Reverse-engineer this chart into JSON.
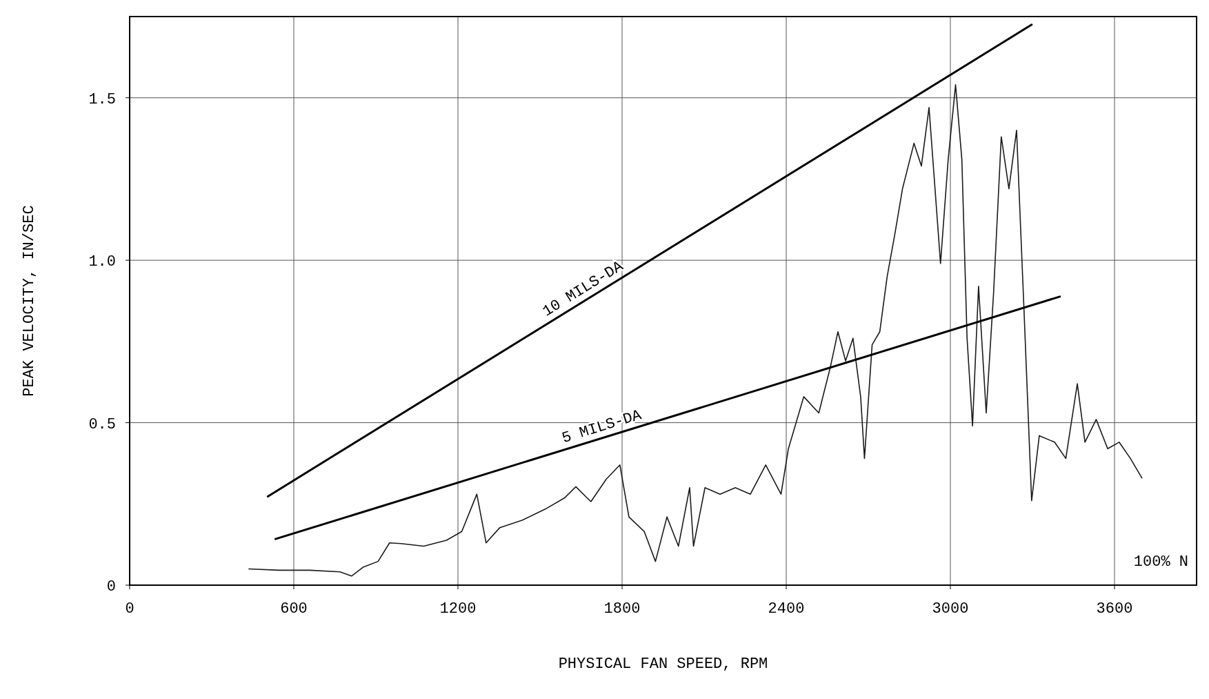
{
  "chart_data": {
    "type": "line",
    "xlabel": "PHYSICAL FAN SPEED, RPM",
    "ylabel": "PEAK VELOCITY, IN/SEC",
    "xlim": [
      0,
      3900
    ],
    "ylim": [
      0,
      1.75
    ],
    "xticks": [
      0,
      600,
      1200,
      1800,
      2400,
      3000,
      3600
    ],
    "yticks": [
      0,
      0.5,
      {
        "value": 1,
        "label": "1.0"
      },
      1.5
    ],
    "grid": true,
    "series": [
      {
        "color": "#1a1a1a",
        "x": [
          436,
          547,
          658,
          769,
          811,
          853,
          908,
          950,
          992,
          1075,
          1158,
          1214,
          1269,
          1303,
          1353,
          1436,
          1519,
          1589,
          1631,
          1686,
          1742,
          1792,
          1825,
          1881,
          1922,
          1964,
          2006,
          2047,
          2061,
          2103,
          2158,
          2214,
          2269,
          2325,
          2381,
          2408,
          2464,
          2519,
          2561,
          2589,
          2617,
          2644,
          2672,
          2686,
          2714,
          2742,
          2769,
          2797,
          2825,
          2867,
          2894,
          2922,
          2950,
          2964,
          2992,
          3019,
          3042,
          3061,
          3081,
          3103,
          3131,
          3158,
          3186,
          3214,
          3242,
          3269,
          3297,
          3325,
          3381,
          3422,
          3464,
          3492,
          3533,
          3575,
          3617,
          3658,
          3700
        ],
        "values": [
          0.05,
          0.046,
          0.046,
          0.041,
          0.028,
          0.055,
          0.073,
          0.13,
          0.128,
          0.12,
          0.138,
          0.165,
          0.28,
          0.13,
          0.177,
          0.2,
          0.234,
          0.268,
          0.303,
          0.257,
          0.326,
          0.37,
          0.21,
          0.165,
          0.073,
          0.21,
          0.12,
          0.3,
          0.12,
          0.3,
          0.28,
          0.3,
          0.28,
          0.37,
          0.28,
          0.42,
          0.58,
          0.53,
          0.67,
          0.78,
          0.69,
          0.76,
          0.58,
          0.39,
          0.74,
          0.78,
          0.95,
          1.08,
          1.22,
          1.36,
          1.29,
          1.47,
          1.15,
          0.99,
          1.31,
          1.54,
          1.31,
          0.76,
          0.49,
          0.92,
          0.53,
          0.9,
          1.38,
          1.22,
          1.4,
          0.85,
          0.26,
          0.46,
          0.44,
          0.39,
          0.62,
          0.44,
          0.51,
          0.42,
          0.44,
          0.39,
          0.33
        ]
      },
      {
        "name": "10 MILS-DA",
        "color": "#000000",
        "x": [
          505,
          3297
        ],
        "values": [
          0.273,
          1.725
        ]
      },
      {
        "name": "5 MILS-DA",
        "color": "#000000",
        "x": [
          533,
          3400
        ],
        "values": [
          0.142,
          0.888
        ]
      }
    ],
    "annotations": [
      "100% N"
    ]
  }
}
